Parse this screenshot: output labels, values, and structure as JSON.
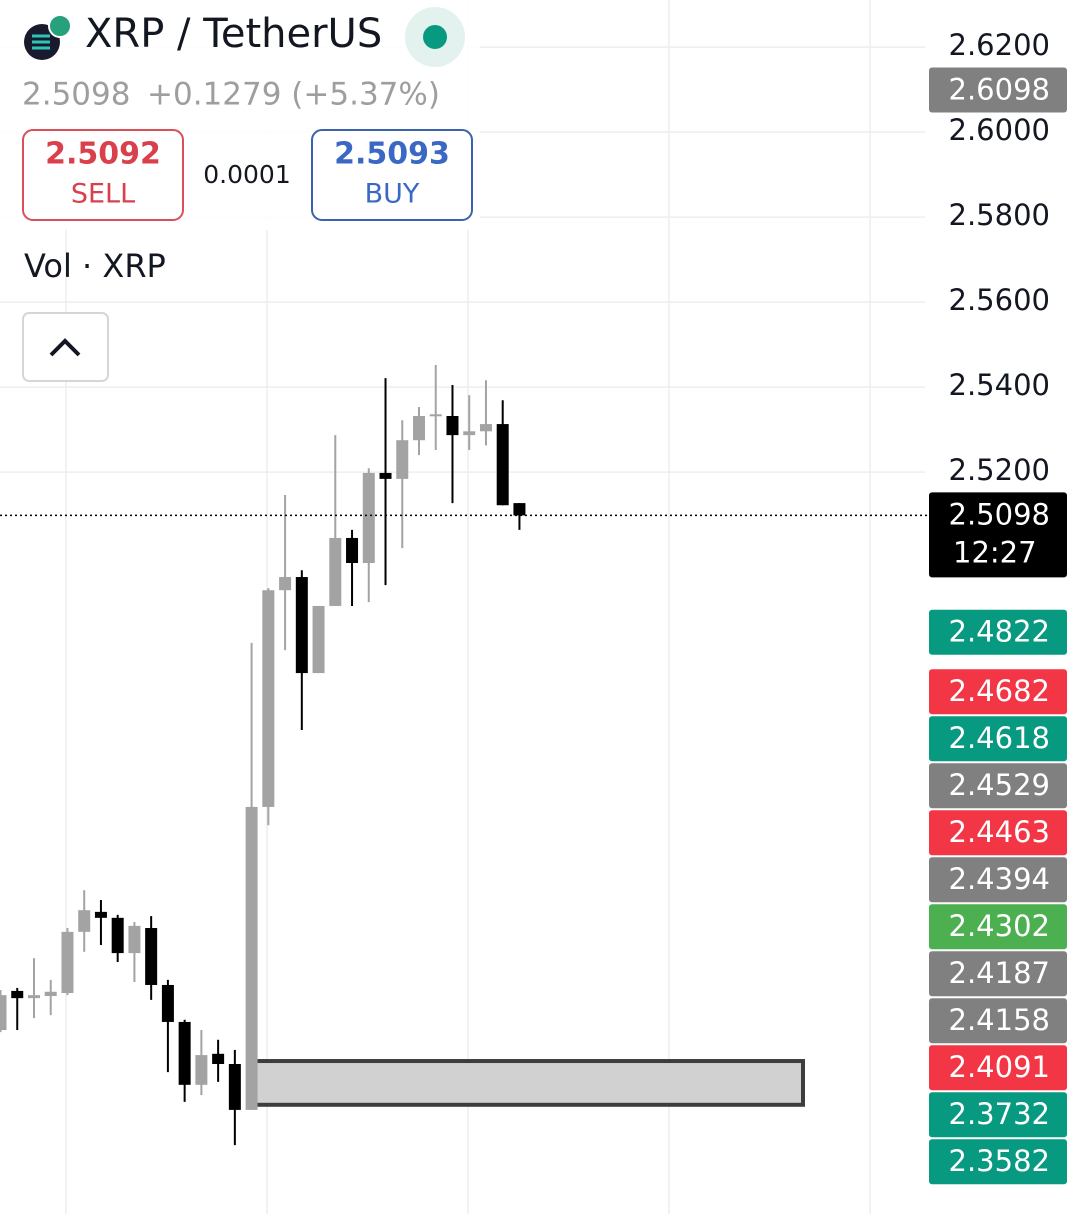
{
  "header": {
    "title": "XRP / TetherUS",
    "last": "2.5098",
    "change": "+0.1279 (+5.37%)",
    "sell_price": "2.5092",
    "sell_label": "SELL",
    "spread": "0.0001",
    "buy_price": "2.5093",
    "buy_label": "BUY",
    "volume_label": "Vol · XRP"
  },
  "chart_data": {
    "type": "candlestick",
    "up_color": "#a3a3a3",
    "down_color": "#000000",
    "open": [
      2.3887,
      2.3979,
      2.3962,
      2.3967,
      2.3974,
      2.4118,
      2.4165,
      2.4151,
      2.4068,
      2.4127,
      2.3993,
      2.3906,
      2.3758,
      2.3831,
      2.3807,
      2.3699,
      2.4412,
      2.4922,
      2.4953,
      2.4727,
      2.4885,
      2.5045,
      2.4986,
      2.5198,
      2.5184,
      2.5275,
      2.5332,
      2.5332,
      2.5287,
      2.5296,
      2.5313,
      2.5127
    ],
    "high": [
      2.3981,
      2.3986,
      2.4056,
      2.4005,
      2.4127,
      2.4216,
      2.4193,
      2.4158,
      2.4141,
      2.4155,
      2.4005,
      2.3911,
      2.3887,
      2.3864,
      2.384,
      2.4798,
      2.4927,
      2.5146,
      2.4969,
      2.4885,
      2.5287,
      2.5064,
      2.5209,
      2.5421,
      2.5322,
      2.5353,
      2.5452,
      2.5405,
      2.5381,
      2.5416,
      2.5369,
      2.5127
    ],
    "low": [
      2.3882,
      2.3887,
      2.3915,
      2.3922,
      2.3969,
      2.4071,
      2.4087,
      2.4047,
      2.4,
      2.3958,
      2.3788,
      2.3718,
      2.3734,
      2.3765,
      2.3616,
      2.3699,
      2.4369,
      2.4781,
      2.4593,
      2.4727,
      2.4885,
      2.4885,
      2.4894,
      2.4934,
      2.5021,
      2.524,
      2.5252,
      2.5127,
      2.5252,
      2.5263,
      2.5122,
      2.5064
    ],
    "close": [
      2.3969,
      2.3962,
      2.3969,
      2.3977,
      2.4118,
      2.4169,
      2.4151,
      2.4068,
      2.4132,
      2.3993,
      2.3906,
      2.3758,
      2.3828,
      2.3807,
      2.3699,
      2.4412,
      2.4922,
      2.4953,
      2.4727,
      2.4885,
      2.5045,
      2.4986,
      2.5198,
      2.5184,
      2.5275,
      2.5332,
      2.5336,
      2.5287,
      2.5296,
      2.5313,
      2.5122,
      2.5098
    ],
    "ylim": [
      2.3454,
      2.6311
    ],
    "yticks": [
      {
        "value": 2.62,
        "label": "2.6200"
      },
      {
        "value": 2.6,
        "label": "2.6000"
      },
      {
        "value": 2.58,
        "label": "2.5800"
      },
      {
        "value": 2.56,
        "label": "2.5600"
      },
      {
        "value": 2.54,
        "label": "2.5400"
      },
      {
        "value": 2.52,
        "label": "2.5200"
      }
    ],
    "grid": true,
    "last_price": 2.5098,
    "last_color": "#000000",
    "countdown": "12:27",
    "zone": {
      "top": 2.3814,
      "bottom": 2.3711
    },
    "price_labels": [
      {
        "value": 2.6098,
        "color": "#808080"
      },
      {
        "value": 2.4822,
        "color": "#089981"
      },
      {
        "value": 2.4682,
        "color": "#f23645"
      },
      {
        "value": 2.4618,
        "color": "#089981"
      },
      {
        "value": 2.4529,
        "color": "#808080"
      },
      {
        "value": 2.4463,
        "color": "#f23645"
      },
      {
        "value": 2.4394,
        "color": "#808080"
      },
      {
        "value": 2.4302,
        "color": "#4caf50"
      },
      {
        "value": 2.4187,
        "color": "#808080"
      },
      {
        "value": 2.4158,
        "color": "#808080"
      },
      {
        "value": 2.4091,
        "color": "#f23645"
      },
      {
        "value": 2.3732,
        "color": "#089981"
      },
      {
        "value": 2.3582,
        "color": "#089981"
      }
    ]
  }
}
